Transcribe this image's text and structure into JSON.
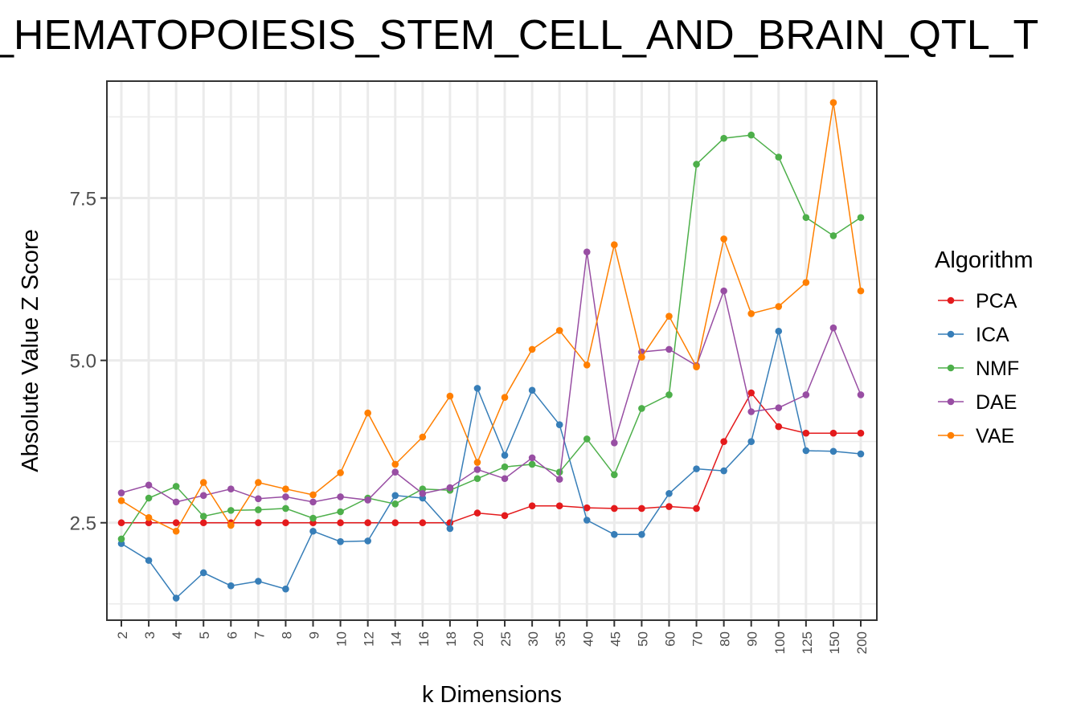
{
  "chart_data": {
    "type": "line",
    "title": "_HEMATOPOIESIS_STEM_CELL_AND_BRAIN_QTL_T",
    "xlabel": "k Dimensions",
    "ylabel": "Absolute Value Z Score",
    "categories": [
      "2",
      "3",
      "4",
      "5",
      "6",
      "7",
      "8",
      "9",
      "10",
      "12",
      "14",
      "16",
      "18",
      "20",
      "25",
      "30",
      "35",
      "40",
      "45",
      "50",
      "60",
      "70",
      "80",
      "90",
      "100",
      "125",
      "150",
      "200"
    ],
    "yticks": [
      "2.5",
      "5.0",
      "7.5"
    ],
    "ylim": [
      1.0,
      9.3
    ],
    "grid": true,
    "legend": {
      "title": "Algorithm",
      "placement": "right"
    },
    "series": [
      {
        "name": "PCA",
        "color": "#e41a1c",
        "values": [
          2.5,
          2.5,
          2.5,
          2.5,
          2.5,
          2.5,
          2.5,
          2.5,
          2.5,
          2.5,
          2.5,
          2.5,
          2.5,
          2.65,
          2.61,
          2.76,
          2.76,
          2.73,
          2.72,
          2.72,
          2.75,
          2.72,
          3.75,
          4.5,
          3.98,
          3.88,
          3.88,
          3.88
        ]
      },
      {
        "name": "ICA",
        "color": "#377eb8",
        "values": [
          2.18,
          1.92,
          1.34,
          1.73,
          1.53,
          1.6,
          1.48,
          2.37,
          2.21,
          2.22,
          2.92,
          2.88,
          2.41,
          4.57,
          3.54,
          4.54,
          4.01,
          2.54,
          2.32,
          2.32,
          2.95,
          3.33,
          3.3,
          3.75,
          5.45,
          3.61,
          3.6,
          3.56
        ]
      },
      {
        "name": "NMF",
        "color": "#4daf4a",
        "values": [
          2.25,
          2.88,
          3.06,
          2.6,
          2.69,
          2.7,
          2.72,
          2.57,
          2.67,
          2.88,
          2.79,
          3.02,
          3.0,
          3.18,
          3.36,
          3.4,
          3.28,
          3.79,
          3.24,
          4.26,
          4.47,
          8.02,
          8.42,
          8.47,
          8.13,
          7.2,
          6.92,
          7.2
        ]
      },
      {
        "name": "DAE",
        "color": "#984ea3",
        "values": [
          2.96,
          3.08,
          2.82,
          2.92,
          3.02,
          2.87,
          2.9,
          2.82,
          2.9,
          2.85,
          3.28,
          2.95,
          3.04,
          3.32,
          3.18,
          3.5,
          3.17,
          6.67,
          3.73,
          5.13,
          5.17,
          4.92,
          6.07,
          4.21,
          4.27,
          4.47,
          5.5,
          4.47
        ]
      },
      {
        "name": "VAE",
        "color": "#ff7f00",
        "values": [
          2.84,
          2.58,
          2.37,
          3.12,
          2.46,
          3.12,
          3.02,
          2.93,
          3.27,
          4.19,
          3.4,
          3.82,
          4.45,
          3.43,
          4.43,
          5.17,
          5.46,
          4.93,
          6.78,
          5.05,
          5.68,
          4.9,
          6.87,
          5.72,
          5.83,
          6.2,
          8.97,
          6.07
        ]
      }
    ]
  }
}
